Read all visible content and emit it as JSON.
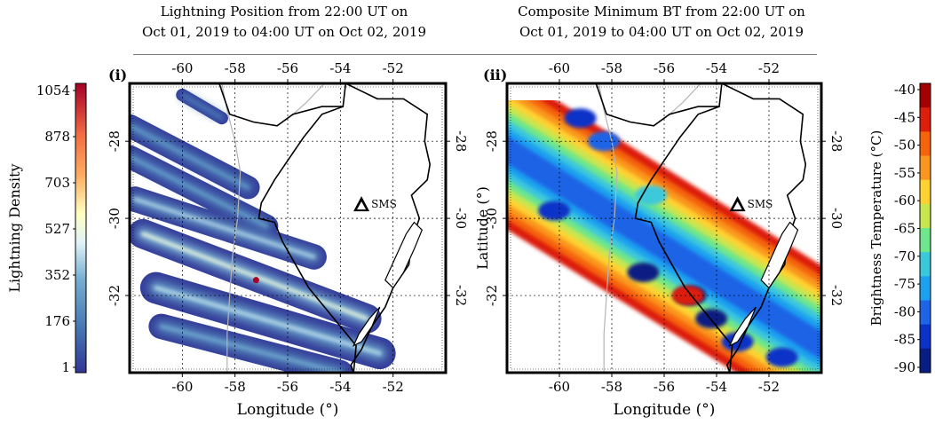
{
  "titles": {
    "left_line1": "Lightning Position from 22:00 UT on",
    "left_line2": "Oct 01, 2019 to 04:00 UT on Oct 02, 2019",
    "right_line1": "Composite Minimum BT from 22:00 UT on",
    "right_line2": "Oct 01, 2019 to 04:00 UT on Oct 02, 2019"
  },
  "colors": {
    "lightning_low": "#313695",
    "lightning_mid": "#ffffbf",
    "lightning_high": "#a50026",
    "coast": "#000000",
    "river": "#b4b4b4",
    "grid": "#000000"
  },
  "chart_data": [
    {
      "type": "heatmap",
      "panel_label": "(i)",
      "xlabel": "Longitude (°)",
      "ylabel": "",
      "xlim": [
        -62,
        -50
      ],
      "ylim": [
        -34,
        -26.5
      ],
      "x_ticks": [
        -60,
        -58,
        -56,
        -54,
        -52
      ],
      "y_ticks": [
        -28,
        -30,
        -32
      ],
      "grid": true,
      "site_marker": {
        "label": "SMS",
        "lon": -53.2,
        "lat": -29.7
      },
      "colorbar": {
        "label": "Lightning Density",
        "position": "left",
        "min": 1,
        "max": 1054,
        "tick_labels": [
          "1054",
          "878",
          "703",
          "527",
          "352",
          "176",
          "1"
        ]
      },
      "lightning_bands": [
        {
          "start": [
            -62.0,
            -27.6
          ],
          "end": [
            -57.5,
            -29.2
          ],
          "width": 0.55,
          "intensity": 0.3
        },
        {
          "start": [
            -62.0,
            -28.4
          ],
          "end": [
            -56.8,
            -30.2
          ],
          "width": 0.55,
          "intensity": 0.32
        },
        {
          "start": [
            -61.8,
            -29.5
          ],
          "end": [
            -55.0,
            -31.0
          ],
          "width": 0.6,
          "intensity": 0.45
        },
        {
          "start": [
            -61.5,
            -30.4
          ],
          "end": [
            -53.0,
            -32.6
          ],
          "width": 0.7,
          "intensity": 0.55
        },
        {
          "start": [
            -61.0,
            -31.8
          ],
          "end": [
            -52.5,
            -33.5
          ],
          "width": 0.75,
          "intensity": 0.45
        },
        {
          "start": [
            -60.8,
            -32.8
          ],
          "end": [
            -54.0,
            -34.0
          ],
          "width": 0.6,
          "intensity": 0.35
        },
        {
          "start": [
            -60.0,
            -26.8
          ],
          "end": [
            -58.5,
            -27.4
          ],
          "width": 0.3,
          "intensity": 0.25
        }
      ],
      "lightning_hotspots": [
        {
          "lon": -57.2,
          "lat": -31.6,
          "value": 1054
        }
      ]
    },
    {
      "type": "heatmap",
      "panel_label": "(ii)",
      "xlabel": "Longitude (°)",
      "ylabel": "Latitude (°)",
      "xlim": [
        -62,
        -50
      ],
      "ylim": [
        -34,
        -26.5
      ],
      "x_ticks": [
        -60,
        -58,
        -56,
        -54,
        -52
      ],
      "y_ticks": [
        -28,
        -30,
        -32
      ],
      "grid": true,
      "site_marker": {
        "label": "SMS",
        "lon": -53.2,
        "lat": -29.7
      },
      "colorbar": {
        "label": "Brightness Temperature (°C)",
        "position": "right",
        "min": -90,
        "max": -40,
        "tick_labels": [
          "-40",
          "-45",
          "-50",
          "-55",
          "-60",
          "-65",
          "-70",
          "-75",
          "-80",
          "-85",
          "-90"
        ],
        "colors": [
          "#a50000",
          "#dc1e0a",
          "#f5640a",
          "#fa961e",
          "#ffd232",
          "#c8e650",
          "#6ee68c",
          "#3cc8dc",
          "#1ea0f0",
          "#1e64e6",
          "#0a32c8",
          "#081e82"
        ]
      },
      "bt_band": {
        "start": [
          -62.5,
          -28.0
        ],
        "end": [
          -50.0,
          -33.3
        ],
        "half_width": 2.6
      },
      "bt_cells": [
        {
          "lon": -59.2,
          "lat": -27.4,
          "bt": -85
        },
        {
          "lon": -58.3,
          "lat": -28.0,
          "bt": -80
        },
        {
          "lon": -56.5,
          "lat": -29.4,
          "bt": -70
        },
        {
          "lon": -56.8,
          "lat": -31.4,
          "bt": -86
        },
        {
          "lon": -55.0,
          "lat": -32.0,
          "bt": -88
        },
        {
          "lon": -54.2,
          "lat": -32.6,
          "bt": -86
        },
        {
          "lon": -53.2,
          "lat": -33.2,
          "bt": -84
        },
        {
          "lon": -51.5,
          "lat": -33.6,
          "bt": -82
        },
        {
          "lon": -60.2,
          "lat": -29.8,
          "bt": -82
        },
        {
          "lon": -55.1,
          "lat": -32.0,
          "bt": -45
        }
      ]
    }
  ]
}
